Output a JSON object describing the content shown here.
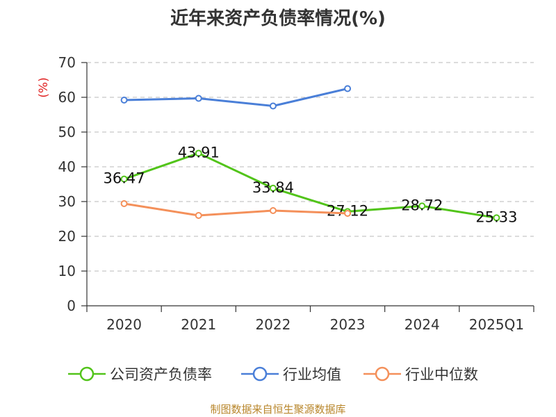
{
  "chart_data": {
    "type": "line",
    "title": "近年来资产负债率情况(%)",
    "ylabel": "(%)",
    "xlabel": "",
    "categories": [
      "2020",
      "2021",
      "2022",
      "2023",
      "2024",
      "2025Q1"
    ],
    "ylim": [
      0,
      70
    ],
    "yticks": [
      0,
      10,
      20,
      30,
      40,
      50,
      60,
      70
    ],
    "grid": true,
    "legend_position": "bottom",
    "series": [
      {
        "name": "公司资产负债率",
        "color": "#52c41a",
        "values": [
          36.47,
          43.91,
          33.84,
          27.12,
          28.72,
          25.33
        ],
        "labels": [
          "36.47",
          "43.91",
          "33.84",
          "27.12",
          "28.72",
          "25.33"
        ]
      },
      {
        "name": "行业均值",
        "color": "#4a7fd8",
        "values": [
          59.2,
          59.7,
          57.5,
          62.5,
          null,
          null
        ]
      },
      {
        "name": "行业中位数",
        "color": "#f4905a",
        "values": [
          29.4,
          26.0,
          27.4,
          26.6,
          null,
          null
        ]
      }
    ]
  },
  "footer": {
    "source": "制图数据来自恒生聚源数据库"
  }
}
